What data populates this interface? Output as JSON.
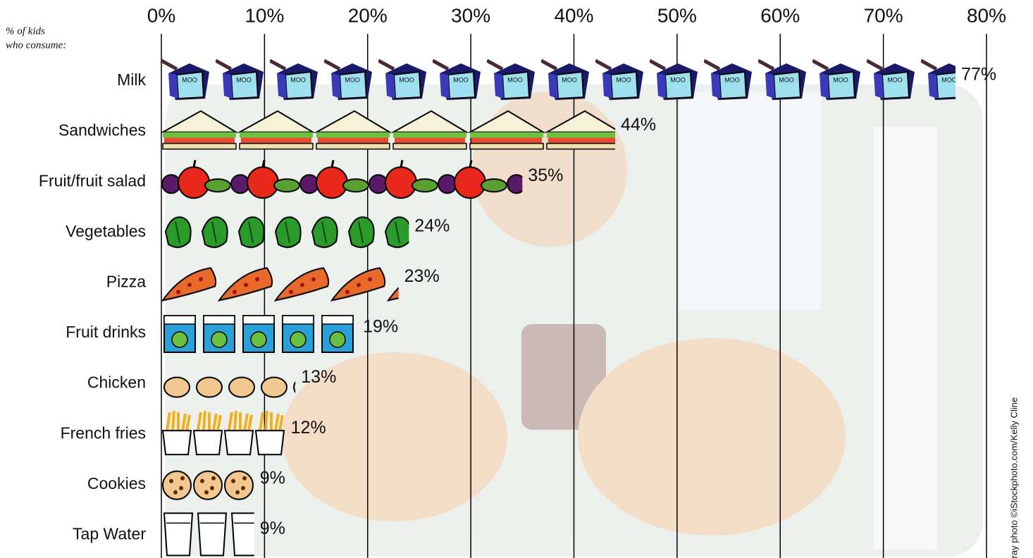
{
  "chart_data": {
    "type": "pictograph",
    "note_label": "% of kids who consume:",
    "credit": "tray photo ©iStockphoto.com/Kelly Cline",
    "categories": [
      "Milk",
      "Sandwiches",
      "Fruit/fruit salad",
      "Vegetables",
      "Pizza",
      "Fruit drinks",
      "Chicken",
      "French fries",
      "Cookies",
      "Tap Water"
    ],
    "values": [
      77,
      44,
      35,
      24,
      23,
      19,
      13,
      12,
      9,
      9
    ],
    "value_labels": [
      "77%",
      "44%",
      "35%",
      "24%",
      "23%",
      "19%",
      "13%",
      "12%",
      "9%",
      "9%"
    ],
    "xlim": [
      0,
      80
    ],
    "xticks": [
      {
        "value": 0,
        "label": "0%"
      },
      {
        "value": 10,
        "label": "10%"
      },
      {
        "value": 20,
        "label": "20%"
      },
      {
        "value": 30,
        "label": "30%"
      },
      {
        "value": 40,
        "label": "40%"
      },
      {
        "value": 50,
        "label": "50%"
      },
      {
        "value": 60,
        "label": "60%"
      },
      {
        "value": 70,
        "label": "70%"
      },
      {
        "value": 80,
        "label": "80%"
      }
    ],
    "grid": true
  }
}
